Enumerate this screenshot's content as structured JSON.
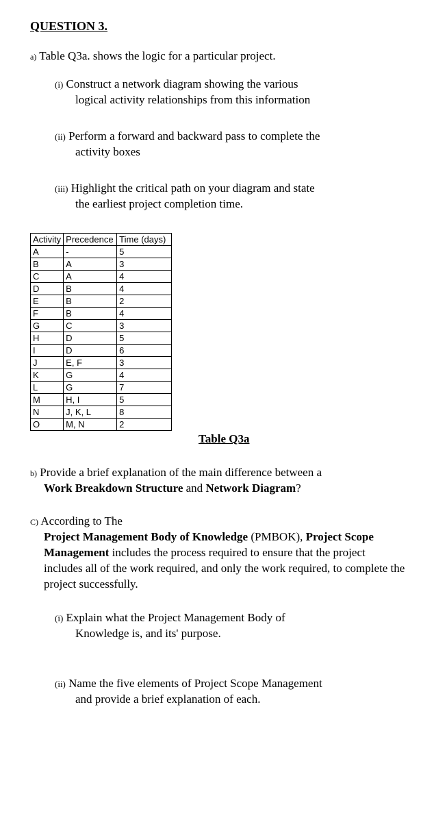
{
  "heading": "QUESTION 3.",
  "part_a": {
    "label": "a)",
    "text": "Table Q3a. shows the logic for a particular project."
  },
  "sub_i": {
    "roman": "(i)",
    "line1": "Construct a network diagram showing the various",
    "line2": "logical activity relationships from this information"
  },
  "sub_ii": {
    "roman": "(ii)",
    "line1": "Perform a forward and backward pass to complete the",
    "line2": "activity boxes"
  },
  "sub_iii": {
    "roman": "(iii)",
    "line1": "Highlight the critical path on your diagram and state",
    "line2": "the earliest project completion time."
  },
  "table": {
    "headers": [
      "Activity",
      "Precedence",
      "Time (days)"
    ],
    "rows": [
      [
        "A",
        "-",
        "5"
      ],
      [
        "B",
        "A",
        "3"
      ],
      [
        "C",
        "A",
        "4"
      ],
      [
        "D",
        "B",
        "4"
      ],
      [
        "E",
        "B",
        "2"
      ],
      [
        "F",
        "B",
        "4"
      ],
      [
        "G",
        "C",
        "3"
      ],
      [
        "H",
        "D",
        "5"
      ],
      [
        "I",
        "D",
        "6"
      ],
      [
        "J",
        "E, F",
        "3"
      ],
      [
        "K",
        "G",
        "4"
      ],
      [
        "L",
        "G",
        "7"
      ],
      [
        "M",
        "H, I",
        "5"
      ],
      [
        "N",
        "J, K, L",
        "8"
      ],
      [
        "O",
        "M, N",
        "2"
      ]
    ],
    "caption": "Table Q3a"
  },
  "part_b": {
    "label": "b)",
    "pre": "Provide a brief explanation of the main difference between a ",
    "bold1": "Work Breakdown Structure",
    "mid": " and ",
    "bold2": "Network Diagram",
    "post": "?"
  },
  "part_c": {
    "label": "C)",
    "pre": "According to The ",
    "bold1": "Project Management Body of Knowledge",
    "mid1": " (PMBOK), ",
    "bold2": "Project Scope Management",
    "post": " includes the process required to ensure that the project includes all of the work required, and only the work required, to complete the project successfully."
  },
  "part_c_i": {
    "roman": "(i)",
    "line1": "Explain what the Project Management Body of",
    "line2": "Knowledge is, and its' purpose."
  },
  "part_c_ii": {
    "roman": "(ii)",
    "line1": "Name the five elements of Project Scope Management",
    "line2": "and provide a brief explanation of each."
  }
}
